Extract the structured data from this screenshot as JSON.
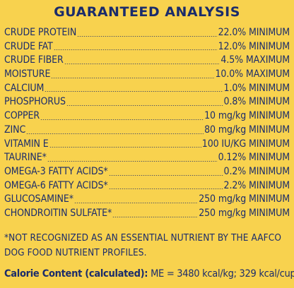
{
  "title": "GUARANTEED ANALYSIS",
  "rows": [
    {
      "name": "CRUDE PROTEIN",
      "amount": "22.0% MINIMUM"
    },
    {
      "name": "CRUDE FAT",
      "amount": "12.0% MINIMUM"
    },
    {
      "name": "CRUDE FIBER",
      "amount": "4.5% MAXIMUM"
    },
    {
      "name": "MOISTURE",
      "amount": "10.0% MAXIMUM"
    },
    {
      "name": "CALCIUM",
      "amount": "1.0% MINIMUM"
    },
    {
      "name": "PHOSPHORUS",
      "amount": "0.8% MINIMUM"
    },
    {
      "name": "COPPER",
      "amount": "10 mg/kg MINIMUM"
    },
    {
      "name": "ZINC",
      "amount": "80 mg/kg MINIMUM"
    },
    {
      "name": "VITAMIN E",
      "amount": "100 IU/KG MINIMUM"
    },
    {
      "name": "TAURINE*",
      "amount": "0.12% MINIMUM"
    },
    {
      "name": "OMEGA-3 FATTY ACIDS*",
      "amount": "0.2% MINIMUM"
    },
    {
      "name": "OMEGA-6 FATTY ACIDS*",
      "amount": "2.2% MINIMUM"
    },
    {
      "name": "GLUCOSAMINE*",
      "amount": "250 mg/kg MINIMUM"
    },
    {
      "name": "CHONDROITIN SULFATE*",
      "amount": "250 mg/kg MINIMUM"
    }
  ],
  "footnote": "*NOT RECOGNIZED AS AN ESSENTIAL NUTRIENT BY THE AAFCO DOG FOOD NUTRIENT PROFILES.",
  "calorie": {
    "label": "Calorie Content (calculated):",
    "value": " ME = 3480 kcal/kg; 329 kcal/cup"
  },
  "colors": {
    "background": "#f8d24e",
    "text": "#1b2c6b"
  }
}
